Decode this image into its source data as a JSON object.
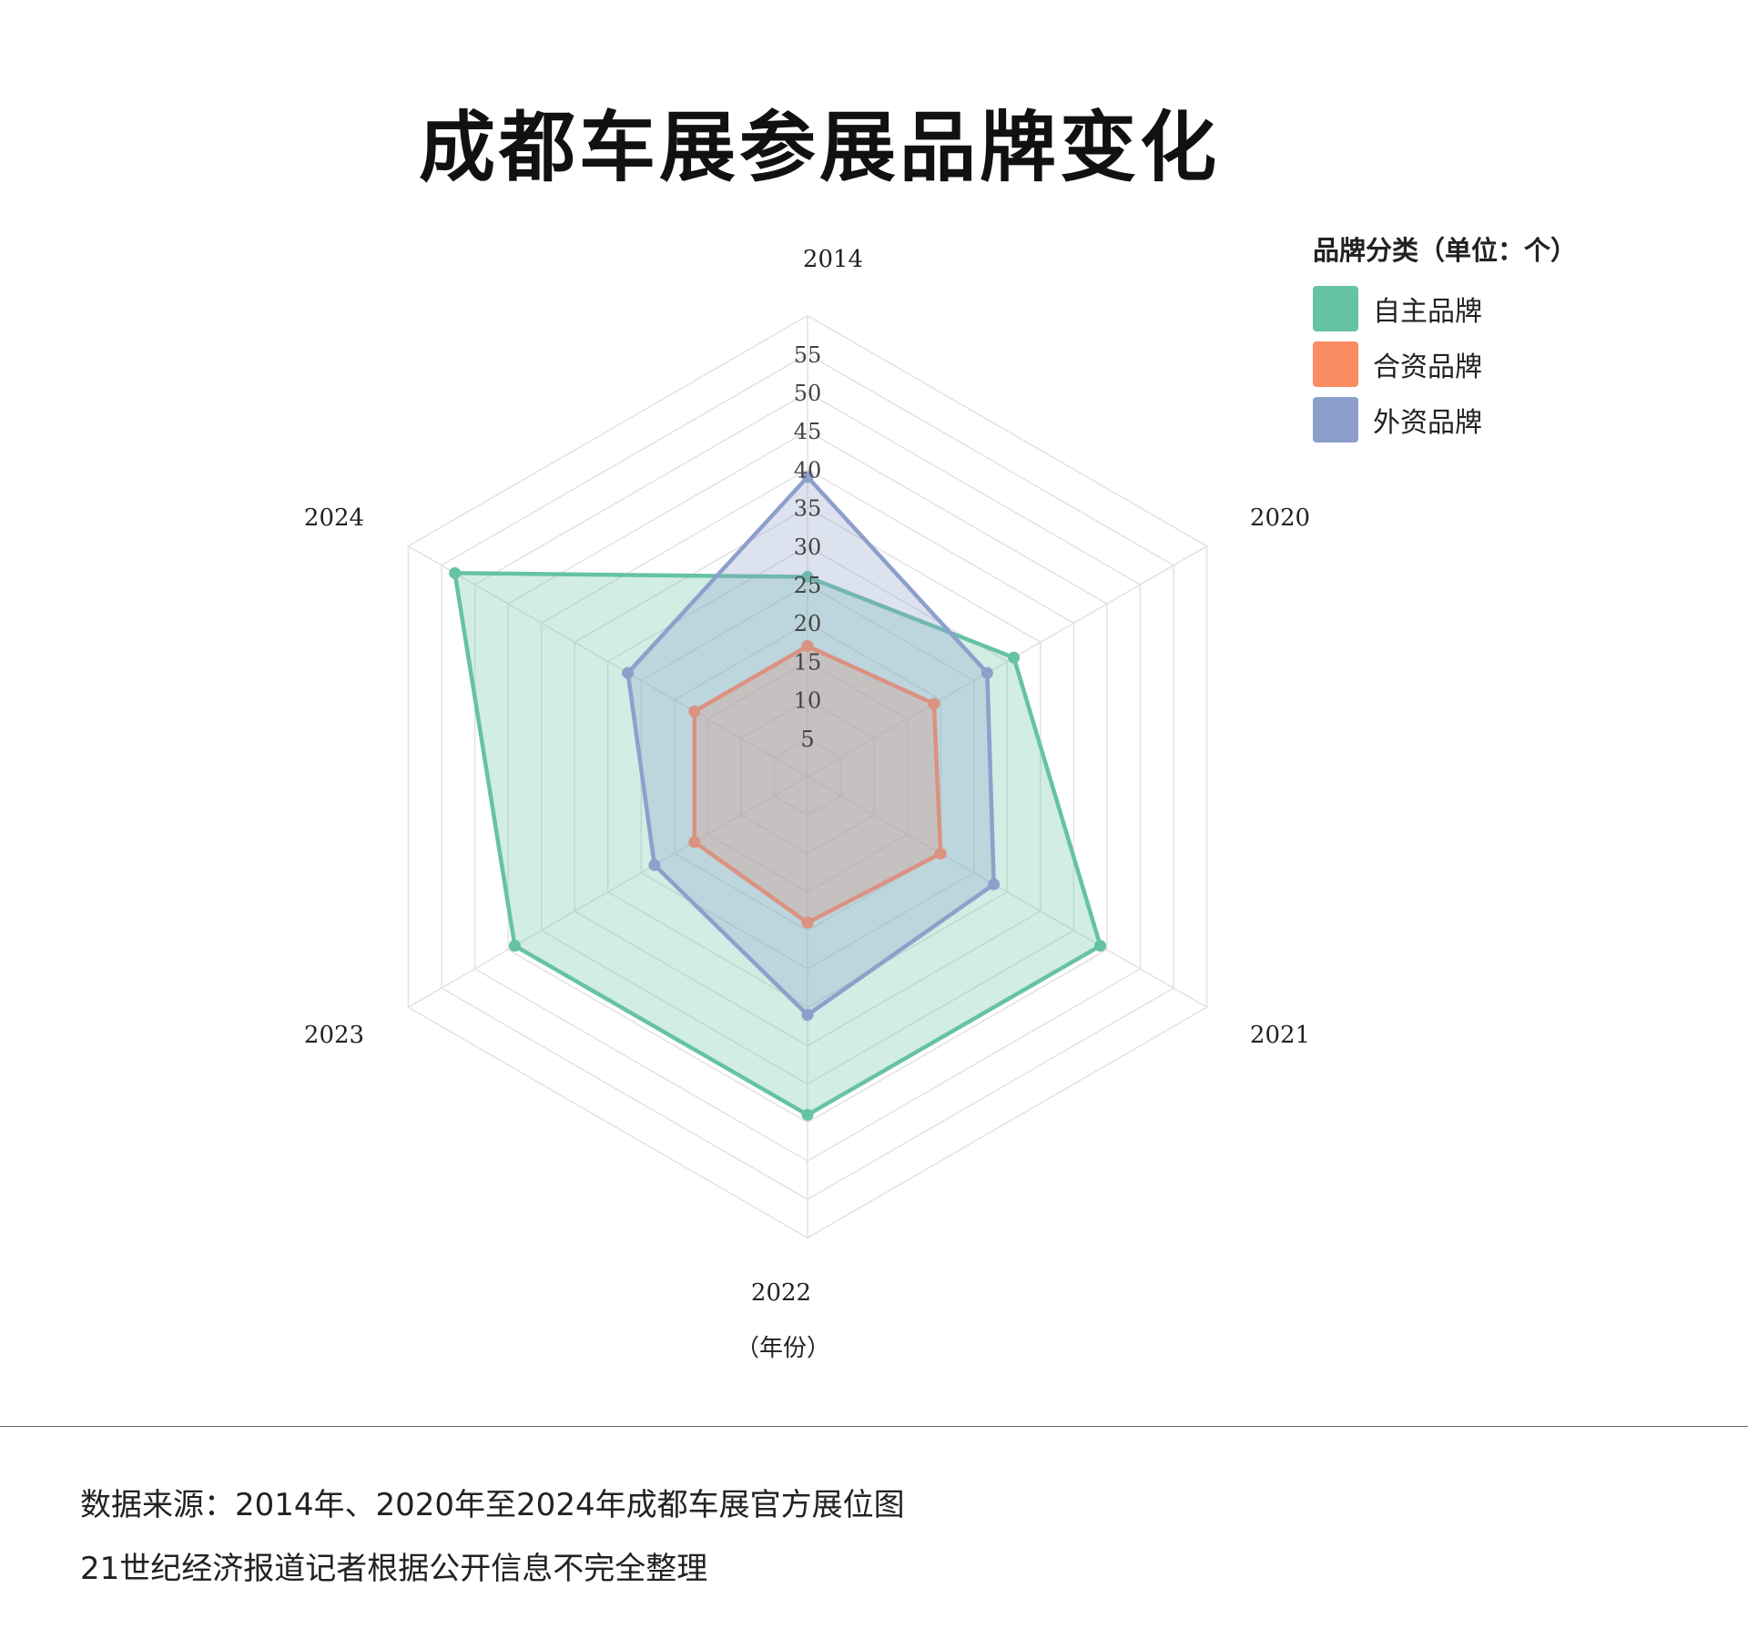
{
  "title": "成都车展参展品牌变化",
  "chart_data": {
    "type": "radar",
    "categories": [
      "2014",
      "2020",
      "2021",
      "2022",
      "2023",
      "2024"
    ],
    "radial_ticks": [
      5,
      10,
      15,
      20,
      25,
      30,
      35,
      40,
      45,
      50,
      55
    ],
    "rlim": [
      0,
      60
    ],
    "grid": true,
    "legend_position": "top-right",
    "legend_title": "品牌分类（单位：个）",
    "xlabel": "（年份）",
    "series": [
      {
        "name": "自主品牌",
        "color": "#66c2a5",
        "values": [
          26,
          31,
          44,
          44,
          44,
          53
        ]
      },
      {
        "name": "合资品牌",
        "color": "#fc8d62",
        "values": [
          17,
          19,
          20,
          19,
          17,
          17
        ]
      },
      {
        "name": "外资品牌",
        "color": "#8da0cb",
        "values": [
          39,
          27,
          28,
          31,
          23,
          27
        ]
      }
    ]
  },
  "footer": {
    "source": "数据来源：2014年、2020年至2024年成都车展官方展位图",
    "credit": "21世纪经济报道记者根据公开信息不完全整理"
  }
}
